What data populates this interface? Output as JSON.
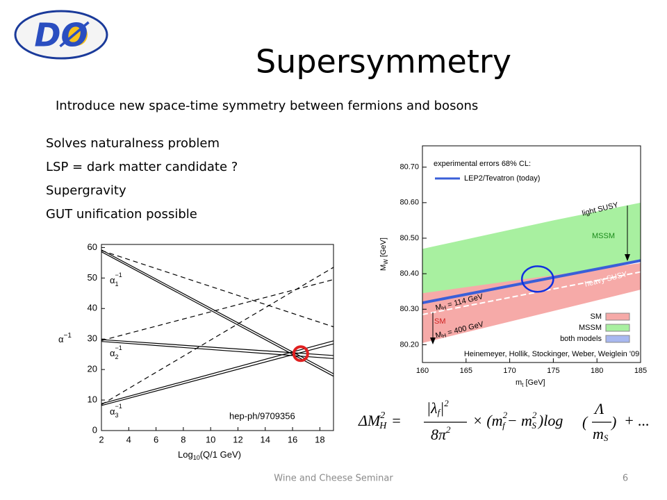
{
  "logo": "DØ",
  "title": "Supersymmetry",
  "subtitle": "Introduce new space-time symmetry between fermions and bosons",
  "bullets": [
    "Solves naturalness problem",
    "LSP = dark matter candidate ?",
    "Supergravity",
    "GUT unification possible"
  ],
  "left_plot": {
    "xlim": [
      2,
      19
    ],
    "ylim": [
      0,
      61
    ],
    "xticks": [
      2,
      4,
      6,
      8,
      10,
      12,
      14,
      16,
      18
    ],
    "yticks": [
      0,
      10,
      20,
      30,
      40,
      50,
      60
    ],
    "ylabel": [
      "α",
      "−1"
    ],
    "xlabel": [
      "Log",
      "10",
      "(Q/1 GeV)"
    ],
    "curve_labels": [
      [
        "α",
        "1",
        "−1"
      ],
      [
        "α",
        "2",
        "−1"
      ],
      [
        "α",
        "3",
        "−1"
      ]
    ],
    "lines": [
      {
        "style": "solid",
        "x": [
          2,
          19
        ],
        "y": [
          59.2,
          18.6
        ]
      },
      {
        "style": "solid",
        "x": [
          2,
          19
        ],
        "y": [
          58.6,
          17.8
        ]
      },
      {
        "style": "dashed",
        "x": [
          2,
          19
        ],
        "y": [
          59,
          34
        ]
      },
      {
        "style": "solid",
        "x": [
          2,
          19
        ],
        "y": [
          29.8,
          24.6
        ]
      },
      {
        "style": "solid",
        "x": [
          2,
          19
        ],
        "y": [
          29.2,
          23.6
        ]
      },
      {
        "style": "dashed",
        "x": [
          2,
          19
        ],
        "y": [
          29.5,
          49.5
        ]
      },
      {
        "style": "solid",
        "x": [
          2,
          19
        ],
        "y": [
          8.8,
          29.4
        ]
      },
      {
        "style": "solid",
        "x": [
          2,
          19
        ],
        "y": [
          8.2,
          28.4
        ]
      },
      {
        "style": "dashed",
        "x": [
          2,
          19
        ],
        "y": [
          8.5,
          53.5
        ]
      }
    ],
    "highlight": {
      "x": 16.6,
      "y": 25.2,
      "color": "#e02020"
    },
    "reference": "hep-ph/9709356"
  },
  "right_plot": {
    "xlim": [
      160,
      185
    ],
    "ylim": [
      80.15,
      80.76
    ],
    "xticks": [
      160,
      165,
      170,
      175,
      180,
      185
    ],
    "yticks": [
      {
        "value": 80.2,
        "label": "80.20"
      },
      {
        "value": 80.3,
        "label": "80.30"
      },
      {
        "value": 80.4,
        "label": "80.40"
      },
      {
        "value": 80.5,
        "label": "80.50"
      },
      {
        "value": 80.6,
        "label": "80.60"
      },
      {
        "value": 80.7,
        "label": "80.70"
      }
    ],
    "ylabel": [
      "M",
      "W",
      " [GeV]"
    ],
    "xlabel": [
      "m",
      "t",
      " [GeV]"
    ],
    "bands": [
      {
        "color": "#a8f0a0",
        "x": [
          160,
          175,
          185,
          185,
          160
        ],
        "y": [
          80.47,
          80.55,
          80.6,
          80.435,
          80.31
        ]
      },
      {
        "color": "#f6aaa8",
        "x": [
          160,
          185,
          185,
          160
        ],
        "y": [
          80.345,
          80.43,
          80.355,
          80.205
        ]
      }
    ],
    "mw_line": {
      "color": "#3a5fd8",
      "x": [
        160,
        185
      ],
      "y": [
        80.318,
        80.437
      ]
    },
    "dash_line": {
      "color": "#ffffff",
      "x": [
        160,
        185
      ],
      "y": [
        80.285,
        80.405
      ]
    },
    "ellipse": {
      "x": 173.2,
      "y": 80.385,
      "rx": 1.8,
      "ry": 0.036,
      "color": "#1030e0"
    },
    "legend_title": "experimental errors 68% CL:",
    "legend_entry": "LEP2/Tevatron (today)",
    "annotations": [
      "light SUSY",
      "MSSM",
      "heavy SUSY",
      [
        "M",
        "H",
        " = 114 GeV"
      ],
      "SM",
      [
        "M",
        "H",
        " = 400 GeV"
      ]
    ],
    "key": [
      {
        "name": "SM",
        "color": "#f6aaa8"
      },
      {
        "name": "MSSM",
        "color": "#a8f0a0"
      },
      {
        "name": "both models",
        "color": "#a8b8f0"
      }
    ],
    "credit": "Heinemeyer, Hollik, Stockinger, Weber, Weiglein '09"
  },
  "formula": [
    "ΔM",
    "2",
    "H",
    "=",
    "|λ",
    "f",
    "|",
    "2",
    "8π",
    "2",
    "× (m",
    "2",
    "f",
    "− m",
    "2",
    "S",
    ")log",
    "Λ",
    "m",
    "S",
    "+ ..."
  ],
  "footer": "Wine and Cheese Seminar",
  "page_number": "6"
}
